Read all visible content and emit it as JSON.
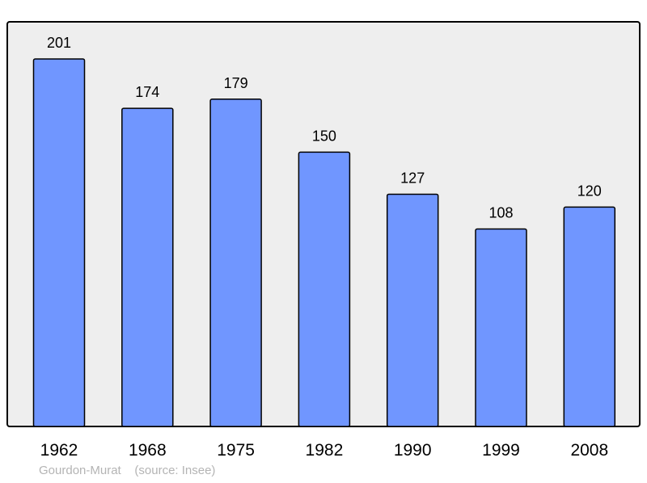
{
  "chart_data": {
    "type": "bar",
    "categories": [
      "1962",
      "1968",
      "1975",
      "1982",
      "1990",
      "1999",
      "2008"
    ],
    "values": [
      201,
      174,
      179,
      150,
      127,
      108,
      120
    ],
    "data_labels": [
      "201",
      "174",
      "179",
      "150",
      "127",
      "108",
      "120"
    ],
    "title": "",
    "xlabel": "",
    "ylabel": "",
    "ylim": [
      0,
      201
    ],
    "grid": false,
    "legend": "none"
  },
  "caption": {
    "place": "Gourdon-Murat",
    "source": "(source: Insee)"
  },
  "colors": {
    "bar_fill": "#7096ff",
    "bar_stroke": "#000000",
    "plot_background": "#eeeeee",
    "frame": "#000000",
    "caption_text": "#b4b4b4"
  }
}
